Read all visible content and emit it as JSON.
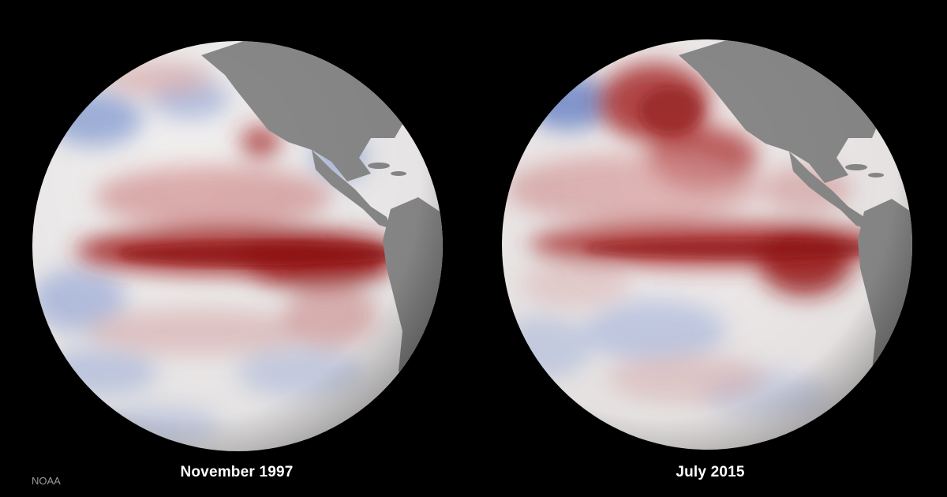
{
  "globes": [
    {
      "caption": "November 1997"
    },
    {
      "caption": "July 2015"
    }
  ],
  "credit": "NOAA",
  "colors": {
    "background": "#000000",
    "warm_anomaly": "#9c1b1b",
    "cool_anomaly": "#3d5fb5",
    "neutral_ocean": "#f2f0f0",
    "land": "#8a8a8a"
  }
}
